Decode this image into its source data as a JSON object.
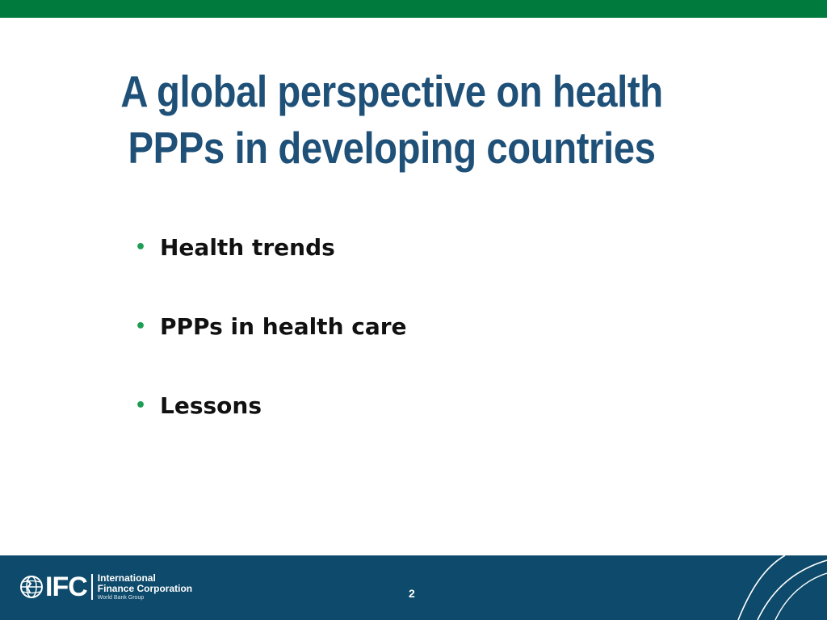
{
  "slide": {
    "title_line1": "A global perspective on health",
    "title_line2": "PPPs in developing countries",
    "bullets": [
      "Health trends",
      "PPPs in health care",
      "Lessons"
    ],
    "bullet_glyph": "•",
    "page_number": "2"
  },
  "footer": {
    "logo": {
      "mark": "IFC",
      "line1": "International",
      "line2": "Finance Corporation",
      "line3": "World Bank Group"
    }
  },
  "colors": {
    "top_bar": "#007a3d",
    "title": "#1f5078",
    "bullet": "#1e9d55",
    "footer": "#0d4a6b"
  },
  "icons": {
    "logo_globe": "globe-icon",
    "footer_decoration": "swoosh-lines"
  }
}
